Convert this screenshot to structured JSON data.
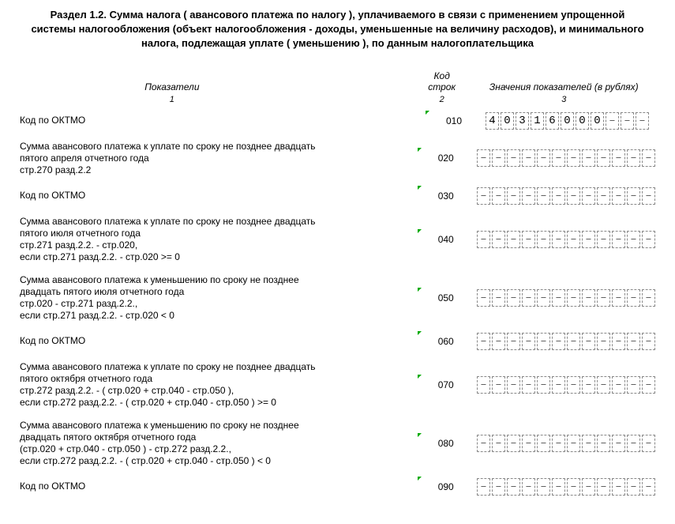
{
  "title": "Раздел 1.2. Сумма налога ( авансового платежа по налогу ), уплачиваемого в связи с применением упрощенной системы налогообложения (объект налогообложения - доходы, уменьшенные на величину расходов), и минимального налога, подлежащая уплате ( уменьшению ), по данным налогоплательщика",
  "headers": {
    "col1": "Показатели",
    "col2": "Код строк",
    "col3": "Значения показателей (в рублях)",
    "sub1": "1",
    "sub2": "2",
    "sub3": "3"
  },
  "cellCount": 12,
  "rows": [
    {
      "label": "Код по ОКТМО",
      "code": "010",
      "values": [
        "4",
        "0",
        "3",
        "1",
        "6",
        "0",
        "0",
        "0",
        "–",
        "–",
        "–"
      ],
      "extraCells": 11
    },
    {
      "label": "Сумма авансового платежа к уплате по сроку не позднее двадцать пятого апреля отчетного года\nстр.270 разд.2.2",
      "code": "020",
      "values": []
    },
    {
      "label": "Код по ОКТМО",
      "code": "030",
      "values": []
    },
    {
      "label": "Сумма авансового платежа к уплате по сроку не позднее двадцать пятого июля отчетного года\nстр.271 разд.2.2. - стр.020,\nесли стр.271 разд.2.2. - стр.020 >= 0",
      "code": "040",
      "values": []
    },
    {
      "label": "Сумма авансового платежа к уменьшению по сроку не позднее двадцать пятого июля отчетного года\nстр.020 - стр.271 разд.2.2.,\nесли стр.271 разд.2.2. - стр.020 < 0",
      "code": "050",
      "values": []
    },
    {
      "label": "Код по ОКТМО",
      "code": "060",
      "values": []
    },
    {
      "label": "Сумма авансового платежа к уплате по сроку не позднее двадцать пятого октября отчетного года\nстр.272 разд.2.2. - ( стр.020 + стр.040 - стр.050 ),\nесли стр.272 разд.2.2. - ( стр.020 + стр.040 - стр.050 ) >= 0",
      "code": "070",
      "values": []
    },
    {
      "label": "Сумма авансового платежа к уменьшению по сроку не позднее двадцать пятого октября отчетного года\n(стр.020 + стр.040 - стр.050 ) - стр.272 разд.2.2.,\nесли стр.272 разд.2.2. - ( стр.020 + стр.040 - стр.050 ) < 0",
      "code": "080",
      "values": []
    },
    {
      "label": "Код по ОКТМО",
      "code": "090",
      "values": []
    }
  ]
}
